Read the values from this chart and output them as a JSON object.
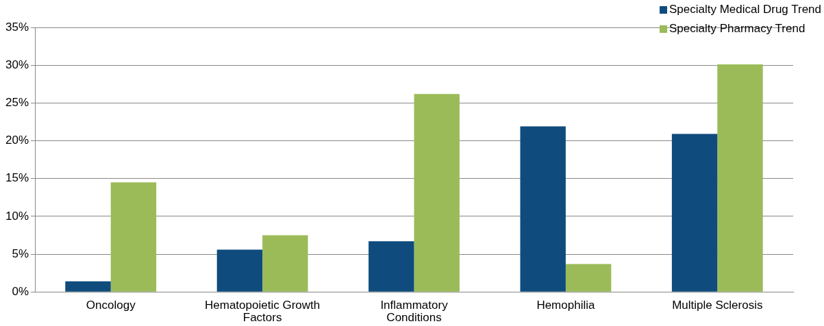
{
  "chart_data": {
    "type": "bar",
    "categories": [
      "Oncology",
      "Hematopoietic Growth Factors",
      "Inflammatory Conditions",
      "Hemophilia",
      "Multiple Sclerosis"
    ],
    "series": [
      {
        "name": "Specialty Medical Drug Trend",
        "color": "#0f4c7d",
        "values": [
          1.4,
          5.6,
          6.7,
          21.9,
          20.9
        ]
      },
      {
        "name": "Specialty Pharmacy Trend",
        "color": "#9bbb59",
        "values": [
          14.5,
          7.5,
          26.2,
          3.7,
          30.1
        ]
      }
    ],
    "ylim": [
      0,
      35
    ],
    "yticks": [
      {
        "value": 0,
        "label": "0%"
      },
      {
        "value": 5,
        "label": "5%"
      },
      {
        "value": 10,
        "label": "10%"
      },
      {
        "value": 15,
        "label": "15%"
      },
      {
        "value": 20,
        "label": "20%"
      },
      {
        "value": 25,
        "label": "25%"
      },
      {
        "value": 30,
        "label": "30%"
      },
      {
        "value": 35,
        "label": "35%"
      }
    ],
    "grid": "y",
    "legend": "top right"
  }
}
